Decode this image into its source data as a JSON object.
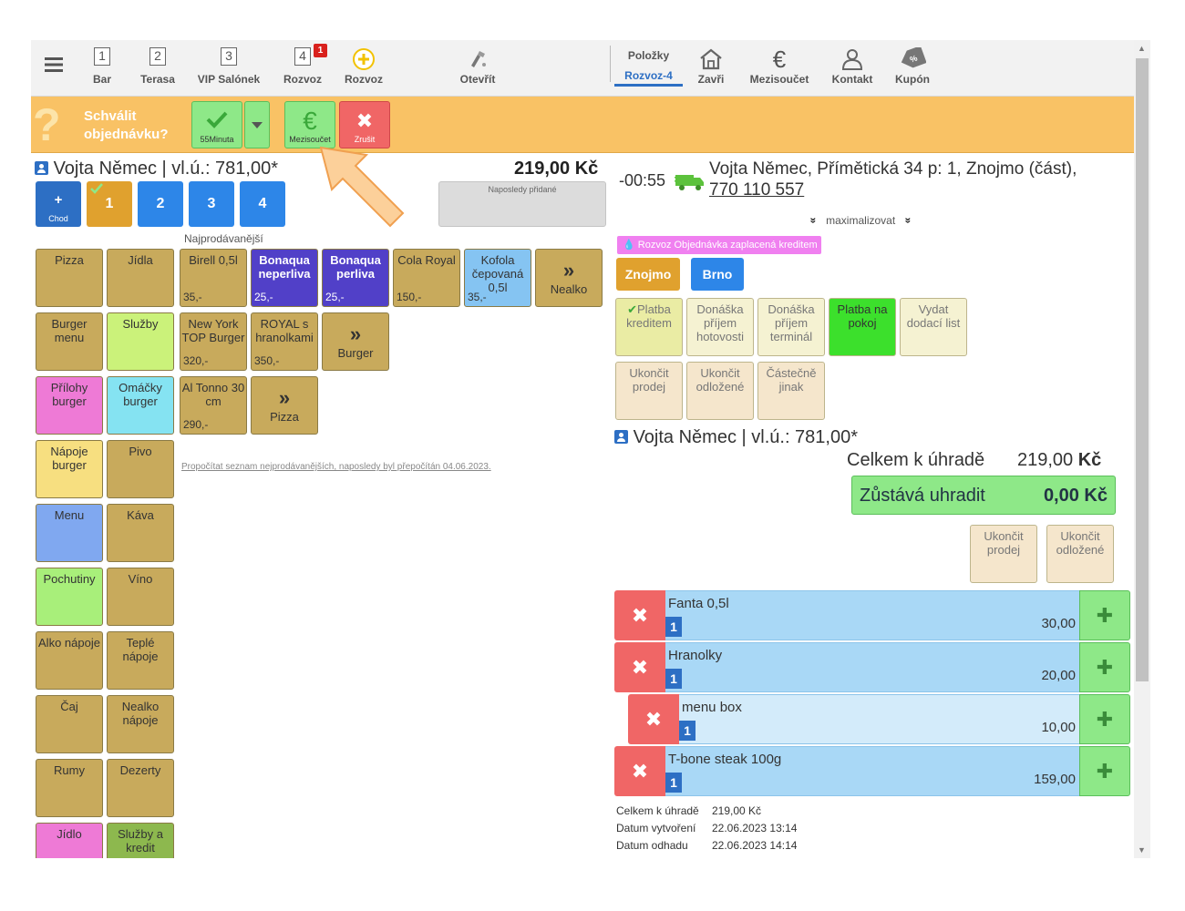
{
  "nav": {
    "bar": {
      "num": "1",
      "label": "Bar"
    },
    "terasa": {
      "num": "2",
      "label": "Terasa"
    },
    "vip": {
      "num": "3",
      "label": "VIP Salónek"
    },
    "rozvoz4": {
      "num": "4",
      "label": "Rozvoz",
      "badge": "1"
    },
    "rozvoz": {
      "label": "Rozvoz"
    },
    "otevrit": {
      "label": "Otevřít"
    },
    "polozky": {
      "label": "Položky",
      "sublabel": "Rozvoz-4"
    },
    "zavri": {
      "label": "Zavři"
    },
    "mezisoucet": {
      "label": "Mezisoučet"
    },
    "kontakt": {
      "label": "Kontakt"
    },
    "kupon": {
      "label": "Kupón"
    }
  },
  "approve": {
    "line1": "Schválit",
    "line2": "objednávku?",
    "confirm_sub": "55Minuta",
    "subtotal_sub": "Mezisoučet",
    "cancel_sub": "Zrušit"
  },
  "left": {
    "customer": "Vojta Němec | vl.ú.: 781,00*",
    "total": "219,00 Kč",
    "recent_label": "Naposledy přidané",
    "course_add_plus": "+",
    "course_add_label": "Chod",
    "courses": [
      "1",
      "2",
      "3",
      "4"
    ],
    "bestsellers_title": "Najprodávanější",
    "recalc_link": "Propočítat seznam nejprodávanějších, naposledy byl přepočítán 04.06.2023.",
    "categories": [
      "Pizza",
      "Jídla",
      "Burger menu",
      "Služby",
      "Přílohy burger",
      "Omáčky burger",
      "Nápoje burger",
      "Pivo",
      "Menu",
      "Káva",
      "Pochutiny",
      "Víno",
      "Alko nápoje",
      "Teplé nápoje",
      "Čaj",
      "Nealko nápoje",
      "Rumy",
      "Dezerty",
      "Jídlo",
      "Služby a kredit"
    ],
    "products": [
      {
        "name": "Birell 0,5l",
        "price": "35,-"
      },
      {
        "name": "Bonaqua neperliva",
        "price": "25,-"
      },
      {
        "name": "Bonaqua perliva",
        "price": "25,-"
      },
      {
        "name": "Cola Royal",
        "price": "150,-"
      },
      {
        "name": "Kofola čepovaná 0,5l",
        "price": "35,-"
      },
      {
        "name": "Nealko",
        "arrow": "»"
      },
      {
        "name": "New York TOP Burger",
        "price": "320,-"
      },
      {
        "name": "ROYAL s hranolkami",
        "price": "350,-"
      },
      {
        "name": "Burger",
        "arrow": "»"
      },
      {
        "name": "Al Tonno 30 cm",
        "price": "290,-"
      },
      {
        "name": "Pizza",
        "arrow": "»"
      }
    ]
  },
  "right": {
    "timer": "-00:55",
    "address": "Vojta Němec, Přímětická 34 p: 1, Znojmo (část),",
    "phone": "770 110 557",
    "maximize": "maximalizovat",
    "paid_badge": "Rozvoz Objednávka zaplacená kreditem",
    "cities": [
      "Znojmo",
      "Brno"
    ],
    "payment_buttons": [
      "Platba kreditem",
      "Donáška příjem hotovosti",
      "Donáška příjem terminál",
      "Platba na pokoj",
      "Vydat dodací list",
      "Ukončit prodej",
      "Ukončit odložené",
      "Částečně jinak"
    ],
    "customer": "Vojta Němec | vl.ú.: 781,00*",
    "total_label": "Celkem k úhradě",
    "total_value": "219,00",
    "total_currency": "Kč",
    "remaining_label": "Zůstává uhradit",
    "remaining_value": "0,00 Kč",
    "finish_buttons": [
      "Ukončit prodej",
      "Ukončit odložené"
    ],
    "items": [
      {
        "name": "Fanta 0,5l",
        "qty": "1",
        "price": "30,00"
      },
      {
        "name": "Hranolky",
        "qty": "1",
        "price": "20,00"
      },
      {
        "name": "menu box",
        "qty": "1",
        "price": "10,00"
      },
      {
        "name": "T-bone steak 100g",
        "qty": "1",
        "price": "159,00"
      }
    ],
    "summary": {
      "total_label": "Celkem k úhradě",
      "total_value": "219,00 Kč",
      "created_label": "Datum vytvoření",
      "created_value": "22.06.2023 13:14",
      "estimate_label": "Datum odhadu",
      "estimate_value": "22.06.2023 14:14"
    }
  },
  "colors": {
    "approve_bar": "#f9c265",
    "primary_blue": "#2d6fc4",
    "category_tan": "#c8aa5c",
    "bonaqua_purple": "#5140c8",
    "item_blue": "#a9d8f6",
    "remove_red": "#f06666",
    "add_green": "#8ee888"
  }
}
